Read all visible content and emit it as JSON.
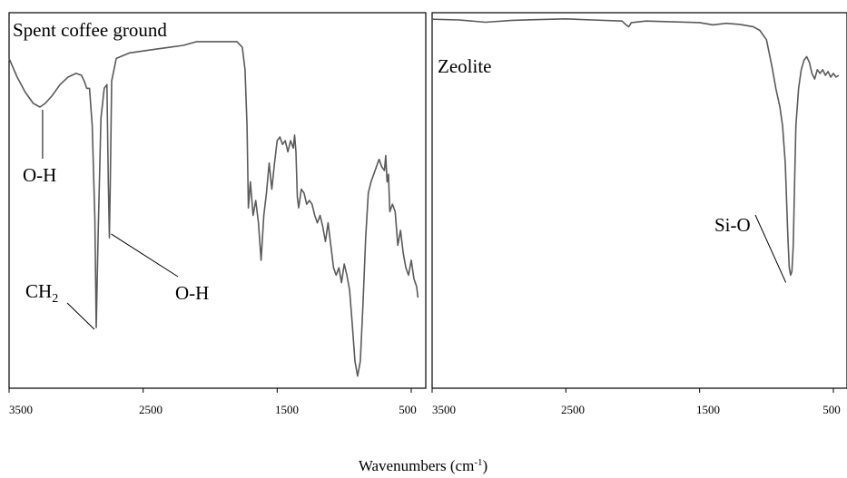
{
  "chart_data": [
    {
      "type": "line",
      "title": "Spent coffee ground",
      "xlabel": "Wavenumbers (cm-1)",
      "x_reversed": true,
      "xlim": [
        3500,
        450
      ],
      "x_ticks": [
        3500,
        2500,
        1500,
        500
      ],
      "x_tick_labels": [
        "3500",
        "2500",
        "1500",
        "500"
      ],
      "ylim": [
        0,
        100
      ],
      "series": [
        {
          "points": [
            [
              3500,
              88
            ],
            [
              3440,
              83
            ],
            [
              3380,
              79
            ],
            [
              3320,
              76
            ],
            [
              3270,
              75
            ],
            [
              3230,
              76
            ],
            [
              3180,
              78
            ],
            [
              3120,
              81
            ],
            [
              3060,
              83
            ],
            [
              3000,
              84
            ],
            [
              2960,
              83.5
            ],
            [
              2940,
              82
            ],
            [
              2920,
              80
            ],
            [
              2900,
              80
            ],
            [
              2880,
              70
            ],
            [
              2860,
              45
            ],
            [
              2850,
              16
            ],
            [
              2835,
              42
            ],
            [
              2815,
              72
            ],
            [
              2790,
              80
            ],
            [
              2770,
              81
            ],
            [
              2760,
              55
            ],
            [
              2752,
              40
            ],
            [
              2745,
              55
            ],
            [
              2735,
              82
            ],
            [
              2700,
              88
            ],
            [
              2600,
              89.5
            ],
            [
              2500,
              90
            ],
            [
              2400,
              90.5
            ],
            [
              2300,
              91
            ],
            [
              2200,
              91.5
            ],
            [
              2100,
              92.5
            ],
            [
              2000,
              92.5
            ],
            [
              1900,
              92.5
            ],
            [
              1800,
              92.5
            ],
            [
              1760,
              91
            ],
            [
              1740,
              85
            ],
            [
              1725,
              70
            ],
            [
              1715,
              48
            ],
            [
              1700,
              55
            ],
            [
              1680,
              46
            ],
            [
              1660,
              50
            ],
            [
              1640,
              44
            ],
            [
              1620,
              34
            ],
            [
              1600,
              46
            ],
            [
              1580,
              52
            ],
            [
              1560,
              60
            ],
            [
              1540,
              53
            ],
            [
              1520,
              60
            ],
            [
              1500,
              66
            ],
            [
              1480,
              67
            ],
            [
              1460,
              65
            ],
            [
              1440,
              66
            ],
            [
              1420,
              63
            ],
            [
              1400,
              66
            ],
            [
              1380,
              64
            ],
            [
              1370,
              67.5
            ],
            [
              1360,
              63
            ],
            [
              1350,
              51
            ],
            [
              1340,
              48
            ],
            [
              1320,
              53
            ],
            [
              1300,
              52
            ],
            [
              1280,
              49
            ],
            [
              1260,
              50
            ],
            [
              1240,
              49
            ],
            [
              1220,
              46
            ],
            [
              1200,
              44
            ],
            [
              1180,
              46
            ],
            [
              1160,
              43
            ],
            [
              1140,
              39
            ],
            [
              1120,
              44
            ],
            [
              1100,
              38
            ],
            [
              1080,
              32
            ],
            [
              1060,
              30
            ],
            [
              1040,
              32
            ],
            [
              1020,
              28
            ],
            [
              1000,
              33
            ],
            [
              980,
              30
            ],
            [
              960,
              26
            ],
            [
              940,
              17
            ],
            [
              920,
              7
            ],
            [
              900,
              3
            ],
            [
              880,
              7
            ],
            [
              860,
              22
            ],
            [
              840,
              40
            ],
            [
              820,
              52
            ],
            [
              800,
              55
            ],
            [
              780,
              57
            ],
            [
              760,
              59
            ],
            [
              740,
              61
            ],
            [
              720,
              59
            ],
            [
              700,
              58
            ],
            [
              690,
              62
            ],
            [
              680,
              55
            ],
            [
              670,
              57
            ],
            [
              660,
              47
            ],
            [
              640,
              49
            ],
            [
              620,
              47
            ],
            [
              600,
              38
            ],
            [
              580,
              42
            ],
            [
              560,
              36
            ],
            [
              540,
              32
            ],
            [
              520,
              30
            ],
            [
              500,
              34
            ],
            [
              480,
              29
            ],
            [
              460,
              27
            ],
            [
              450,
              24
            ]
          ]
        }
      ],
      "annotations": [
        {
          "text": "O-H",
          "x": 3250,
          "y": 75
        },
        {
          "text": "CH2",
          "x": 2850,
          "y": 16
        },
        {
          "text": "O-H",
          "x": 2752,
          "y": 42
        }
      ]
    },
    {
      "type": "line",
      "title": "Zeolite",
      "xlabel": "Wavenumbers (cm-1)",
      "x_reversed": true,
      "xlim": [
        3500,
        450
      ],
      "x_ticks": [
        3500,
        2500,
        1500,
        500
      ],
      "x_tick_labels": [
        "3500",
        "2500",
        "1500",
        "500"
      ],
      "ylim": [
        0,
        100
      ],
      "series": [
        {
          "points": [
            [
              3500,
              98.5
            ],
            [
              3300,
              98.3
            ],
            [
              3100,
              97.7
            ],
            [
              2900,
              98.2
            ],
            [
              2700,
              98.4
            ],
            [
              2500,
              98.6
            ],
            [
              2300,
              98.3
            ],
            [
              2150,
              98.1
            ],
            [
              2080,
              98.0
            ],
            [
              2050,
              97.0
            ],
            [
              2030,
              96.5
            ],
            [
              2010,
              97.6
            ],
            [
              1900,
              98.0
            ],
            [
              1700,
              97.8
            ],
            [
              1500,
              97.6
            ],
            [
              1400,
              97.0
            ],
            [
              1300,
              97.4
            ],
            [
              1200,
              97.1
            ],
            [
              1100,
              96.5
            ],
            [
              1050,
              95.5
            ],
            [
              1000,
              93
            ],
            [
              960,
              86
            ],
            [
              930,
              80
            ],
            [
              900,
              75
            ],
            [
              880,
              70
            ],
            [
              860,
              60
            ],
            [
              840,
              40
            ],
            [
              830,
              32
            ],
            [
              820,
              30
            ],
            [
              810,
              31
            ],
            [
              800,
              38
            ],
            [
              790,
              55
            ],
            [
              780,
              70
            ],
            [
              760,
              80
            ],
            [
              740,
              85
            ],
            [
              720,
              87.5
            ],
            [
              700,
              88.5
            ],
            [
              680,
              87
            ],
            [
              660,
              84
            ],
            [
              640,
              82.5
            ],
            [
              620,
              85
            ],
            [
              600,
              84
            ],
            [
              580,
              85
            ],
            [
              560,
              83.5
            ],
            [
              540,
              84.5
            ],
            [
              520,
              83
            ],
            [
              500,
              84
            ],
            [
              480,
              83
            ],
            [
              460,
              83.5
            ]
          ]
        }
      ],
      "annotations": [
        {
          "text": "Si-O",
          "x": 815,
          "y": 30
        }
      ]
    }
  ],
  "labels": {
    "panel1_title": "Spent coffee ground",
    "panel1_oh_broad": "O-H",
    "panel1_ch2_main": "CH",
    "panel1_ch2_sub": "2",
    "panel1_oh_sharp": "O-H",
    "panel2_title": "Zeolite",
    "panel2_sio": "Si-O",
    "xlabel_main": "Wavenumbers (cm",
    "xlabel_sup": "-1",
    "xlabel_close": ")"
  }
}
